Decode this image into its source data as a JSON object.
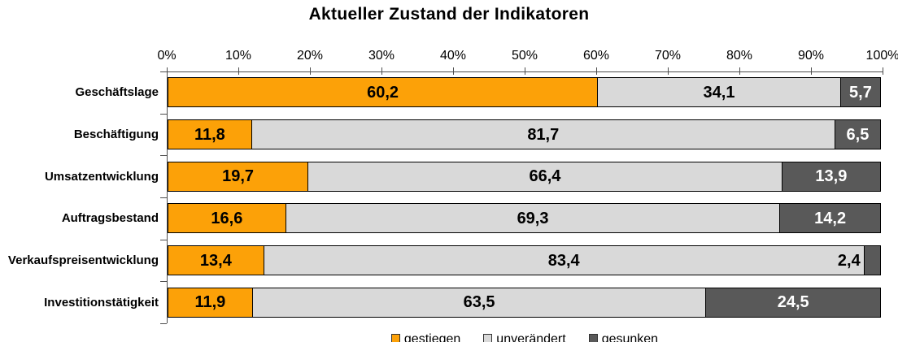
{
  "chart_data": {
    "type": "bar",
    "orientation": "horizontal",
    "stacked": true,
    "title": "Aktueller Zustand der Indikatoren",
    "categories": [
      "Geschäftslage",
      "Beschäftigung",
      "Umsatzentwicklung",
      "Auftragsbestand",
      "Verkaufspreisentwicklung",
      "Investitionstätigkeit"
    ],
    "series": [
      {
        "name": "gestiegen",
        "color": "#FCA108",
        "label_color": "#000000",
        "values": [
          60.2,
          11.8,
          19.7,
          16.6,
          13.4,
          11.9
        ]
      },
      {
        "name": "unverändert",
        "color": "#D9D9D9",
        "label_color": "#000000",
        "values": [
          34.1,
          81.7,
          66.4,
          69.3,
          83.4,
          63.5
        ]
      },
      {
        "name": "gesunken",
        "color": "#595959",
        "label_color": "#FFFFFF",
        "values": [
          5.7,
          6.5,
          13.9,
          14.2,
          2.4,
          24.5
        ]
      }
    ],
    "x_axis": {
      "min": 0,
      "max": 100,
      "tick_labels": [
        "0%",
        "10%",
        "20%",
        "30%",
        "40%",
        "50%",
        "60%",
        "70%",
        "80%",
        "90%",
        "100%"
      ]
    },
    "decimal_separator": ",",
    "value_decimals": 1,
    "grid": false,
    "legend": {
      "position": "bottom",
      "entries": [
        "gestiegen",
        "unverändert",
        "gesunken"
      ]
    }
  }
}
